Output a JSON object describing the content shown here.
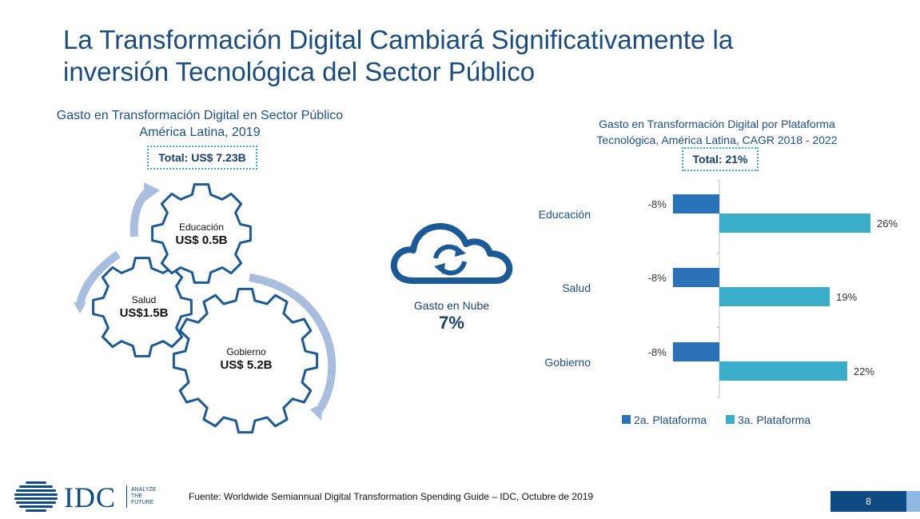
{
  "slide": {
    "title_line1": "La Transformación Digital Cambiará Significativamente la",
    "title_line2": "inversión Tecnológica del Sector Público",
    "page_number": "8",
    "source": "Fuente: Worldwide Semiannual Digital Transformation Spending Guide – IDC, Octubre de 2019"
  },
  "left_panel": {
    "title_line1": "Gasto en Transformación Digital en Sector Público",
    "title_line2": "América Latina, 2019",
    "total": "Total: US$ 7.23B",
    "gears": [
      {
        "label": "Educación",
        "value": "US$ 0.5B"
      },
      {
        "label": "Salud",
        "value": "US$1.5B"
      },
      {
        "label": "Gobierno",
        "value": "US$ 5.2B"
      }
    ],
    "cloud_label": "Gasto en Nube",
    "cloud_value": "7%"
  },
  "logo": {
    "text": "IDC",
    "tagline1": "ANALYZE",
    "tagline2": "THE",
    "tagline3": "FUTURE"
  },
  "chart_data": {
    "type": "bar",
    "orientation": "horizontal",
    "title_line1": "Gasto en Transformación Digital por Plataforma",
    "title_line2": "Tecnológica, América Latina, CAGR 2018 - 2022",
    "total": "Total: 21%",
    "categories": [
      "Educación",
      "Salud",
      "Gobierno"
    ],
    "series": [
      {
        "name": "2a. Plataforma",
        "values": [
          -8,
          -8,
          -8
        ],
        "labels": [
          "-8%",
          "-8%",
          "-8%"
        ],
        "color": "#2a73b8"
      },
      {
        "name": "3a. Plataforma",
        "values": [
          26,
          19,
          22
        ],
        "labels": [
          "26%",
          "19%",
          "22%"
        ],
        "color": "#3aadc8"
      }
    ],
    "xlim": [
      -8,
      26
    ],
    "legend_position": "bottom",
    "grid": false
  },
  "colors": {
    "title": "#1b4c80",
    "gear_stroke": "#1b5a97",
    "arrow": "#a9bedf",
    "dark_blue": "#0f4a85"
  }
}
